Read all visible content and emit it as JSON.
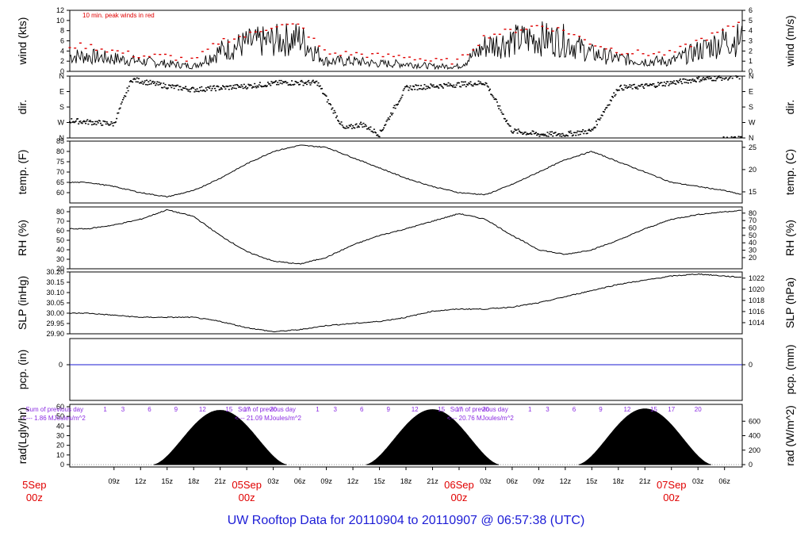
{
  "footer_title": "UW Rooftop Data for 20110904  to  20110907 @ 06:57:38  (UTC)",
  "colors": {
    "series": "#000000",
    "peak": "#e00000",
    "precip": "#1a1ad0",
    "day_label": "#e00000",
    "radiation_text": "#8a2be2",
    "footer": "#1c1cd6"
  },
  "chart_data": [
    {
      "type": "line",
      "ylabel_left": "wind (kts)",
      "ylabel_right": "wind (m/s)",
      "annotation": "10 min. peak winds in red",
      "ylim_left": [
        0,
        12
      ],
      "yticks_left": [
        "0",
        "2",
        "4",
        "6",
        "8",
        "10",
        "12"
      ],
      "ylim_right": [
        0,
        6
      ],
      "yticks_right": [
        "0",
        "1",
        "2",
        "3",
        "4",
        "5",
        "6"
      ],
      "series": [
        {
          "x_hours": [
            0,
            3,
            6,
            9,
            12,
            15,
            18,
            21,
            24,
            27,
            30,
            33,
            36,
            39,
            42,
            45,
            48,
            51,
            54,
            57,
            60,
            63,
            66,
            69,
            72,
            75,
            78
          ],
          "values": [
            3,
            2.5,
            2,
            1.5,
            1,
            4,
            5.5,
            6,
            6.5,
            2,
            2,
            1.5,
            1.5,
            1,
            1,
            5,
            6,
            6.5,
            6,
            3.5,
            2.5,
            2,
            2,
            4,
            6,
            6.5,
            2
          ]
        },
        {
          "x_hours": [
            0,
            3,
            6,
            9,
            12,
            15,
            18,
            21,
            24,
            27,
            30,
            33,
            36,
            39,
            42,
            45,
            48,
            51,
            54,
            57,
            60,
            63,
            66,
            69,
            72,
            75,
            78
          ],
          "values": [
            5,
            4,
            3,
            3,
            2,
            6,
            7,
            9,
            9,
            3.5,
            3.5,
            3,
            3,
            2,
            2,
            7,
            8,
            9,
            8,
            5.5,
            4,
            3.5,
            3.5,
            6,
            8,
            11,
            3
          ]
        }
      ]
    },
    {
      "type": "scatter",
      "ylabel_left": "dir.",
      "ylabel_right": "dir.",
      "yticks_left": [
        "N",
        "W",
        "S",
        "E",
        "N"
      ],
      "yticks_right": [
        "N",
        "W",
        "S",
        "E",
        "N"
      ],
      "ylim": [
        0,
        360
      ]
    },
    {
      "type": "line",
      "ylabel_left": "temp. (F)",
      "ylabel_right": "temp. (C)",
      "ylim_left": [
        55,
        85
      ],
      "yticks_left": [
        "60",
        "65",
        "70",
        "75",
        "80",
        "85"
      ],
      "yticks_right": [
        "15",
        "20",
        "25"
      ],
      "x_hours": [
        0,
        3,
        6,
        9,
        12,
        15,
        18,
        21,
        24,
        27,
        30,
        33,
        36,
        39,
        42,
        45,
        48,
        51,
        54,
        57,
        60,
        63,
        66,
        69,
        72,
        75,
        78
      ],
      "values": [
        65,
        63,
        60,
        58,
        61,
        67,
        74,
        80,
        83,
        82,
        77,
        72,
        67,
        63,
        60,
        59,
        64,
        70,
        76,
        80,
        75,
        70,
        65,
        63,
        61,
        58,
        57
      ]
    },
    {
      "type": "line",
      "ylabel_left": "RH (%)",
      "ylabel_right": "RH (%)",
      "ylim_left": [
        20,
        85
      ],
      "yticks_left": [
        "20",
        "30",
        "40",
        "50",
        "60",
        "70",
        "80"
      ],
      "yticks_right": [
        "20",
        "30",
        "40",
        "50",
        "60",
        "70",
        "80"
      ],
      "x_hours": [
        0,
        3,
        6,
        9,
        12,
        15,
        18,
        21,
        24,
        27,
        30,
        33,
        36,
        39,
        42,
        45,
        48,
        51,
        54,
        57,
        60,
        63,
        66,
        69,
        72,
        75,
        78
      ],
      "values": [
        62,
        66,
        72,
        82,
        75,
        55,
        38,
        28,
        25,
        32,
        45,
        55,
        62,
        70,
        78,
        72,
        55,
        40,
        35,
        40,
        50,
        62,
        72,
        77,
        80,
        82,
        78
      ]
    },
    {
      "type": "line",
      "ylabel_left": "SLP (inHg)",
      "ylabel_right": "SLP (hPa)",
      "ylim_left": [
        29.9,
        30.2
      ],
      "yticks_left": [
        "29.90",
        "29.95",
        "30.00",
        "30.05",
        "30.10",
        "30.15",
        "30.20"
      ],
      "yticks_right": [
        "1014",
        "1016",
        "1018",
        "1020",
        "1022"
      ],
      "x_hours": [
        0,
        3,
        6,
        9,
        12,
        15,
        18,
        21,
        24,
        27,
        30,
        33,
        36,
        39,
        42,
        45,
        48,
        51,
        54,
        57,
        60,
        63,
        66,
        69,
        72,
        75,
        78
      ],
      "values": [
        30.0,
        29.99,
        29.98,
        29.98,
        29.98,
        29.96,
        29.93,
        29.91,
        29.92,
        29.94,
        29.95,
        29.96,
        29.98,
        30.01,
        30.02,
        30.02,
        30.03,
        30.05,
        30.08,
        30.11,
        30.14,
        30.16,
        30.18,
        30.19,
        30.18,
        30.17,
        30.15
      ]
    },
    {
      "type": "line",
      "ylabel_left": "pcp. (in)",
      "ylabel_right": "pcp. (mm)",
      "yticks_left": [
        "0"
      ],
      "yticks_right": [
        "0"
      ],
      "value": 0
    },
    {
      "type": "area",
      "ylabel_left": "rad(Lgly/hr)",
      "ylabel_right": "rad (W/m^2)",
      "ylim_left": [
        0,
        60
      ],
      "yticks_left": [
        "0",
        "10",
        "20",
        "30",
        "40",
        "50",
        "60"
      ],
      "ylim_right": [
        0,
        800
      ],
      "yticks_right": [
        "0",
        "200",
        "400",
        "600"
      ],
      "days": [
        {
          "sum_label": "Sum of previous day",
          "sum_value": "<--- 1.86 MJoules/m^2",
          "peak_wm2": 750
        },
        {
          "sum_label": "Sum of previous day",
          "sum_value": "<--- 21.09 MJoules/m^2",
          "peak_wm2": 760
        },
        {
          "sum_label": "Sum of previous day",
          "sum_value": "<--- 20.76 MJoules/m^2",
          "peak_wm2": 770
        }
      ],
      "local_hour_labels": [
        "1",
        "3",
        "6",
        "9",
        "12",
        "15",
        "17",
        "20"
      ]
    }
  ],
  "x_axis": {
    "hour_ticks": [
      {
        "h": 3,
        "label": "09z"
      },
      {
        "h": 6,
        "label": "12z"
      },
      {
        "h": 9,
        "label": "15z"
      },
      {
        "h": 12,
        "label": "18z"
      },
      {
        "h": 15,
        "label": "21z"
      },
      {
        "h": 21,
        "label": "03z"
      },
      {
        "h": 24,
        "label": "06z"
      },
      {
        "h": 27,
        "label": "09z"
      },
      {
        "h": 30,
        "label": "12z"
      },
      {
        "h": 33,
        "label": "15z"
      },
      {
        "h": 36,
        "label": "18z"
      },
      {
        "h": 39,
        "label": "21z"
      },
      {
        "h": 45,
        "label": "03z"
      },
      {
        "h": 48,
        "label": "06z"
      },
      {
        "h": 51,
        "label": "09z"
      },
      {
        "h": 54,
        "label": "12z"
      },
      {
        "h": 57,
        "label": "15z"
      },
      {
        "h": 60,
        "label": "18z"
      },
      {
        "h": 63,
        "label": "21z"
      },
      {
        "h": 69,
        "label": "03z"
      },
      {
        "h": 72,
        "label": "06z"
      }
    ],
    "day_marks": [
      {
        "h": -6,
        "day": "5Sep",
        "z": "00z",
        "partial": true
      },
      {
        "h": 18,
        "day": "05Sep",
        "z": "00z"
      },
      {
        "h": 42,
        "day": "06Sep",
        "z": "00z"
      },
      {
        "h": 66,
        "day": "07Sep",
        "z": "00z"
      }
    ]
  }
}
